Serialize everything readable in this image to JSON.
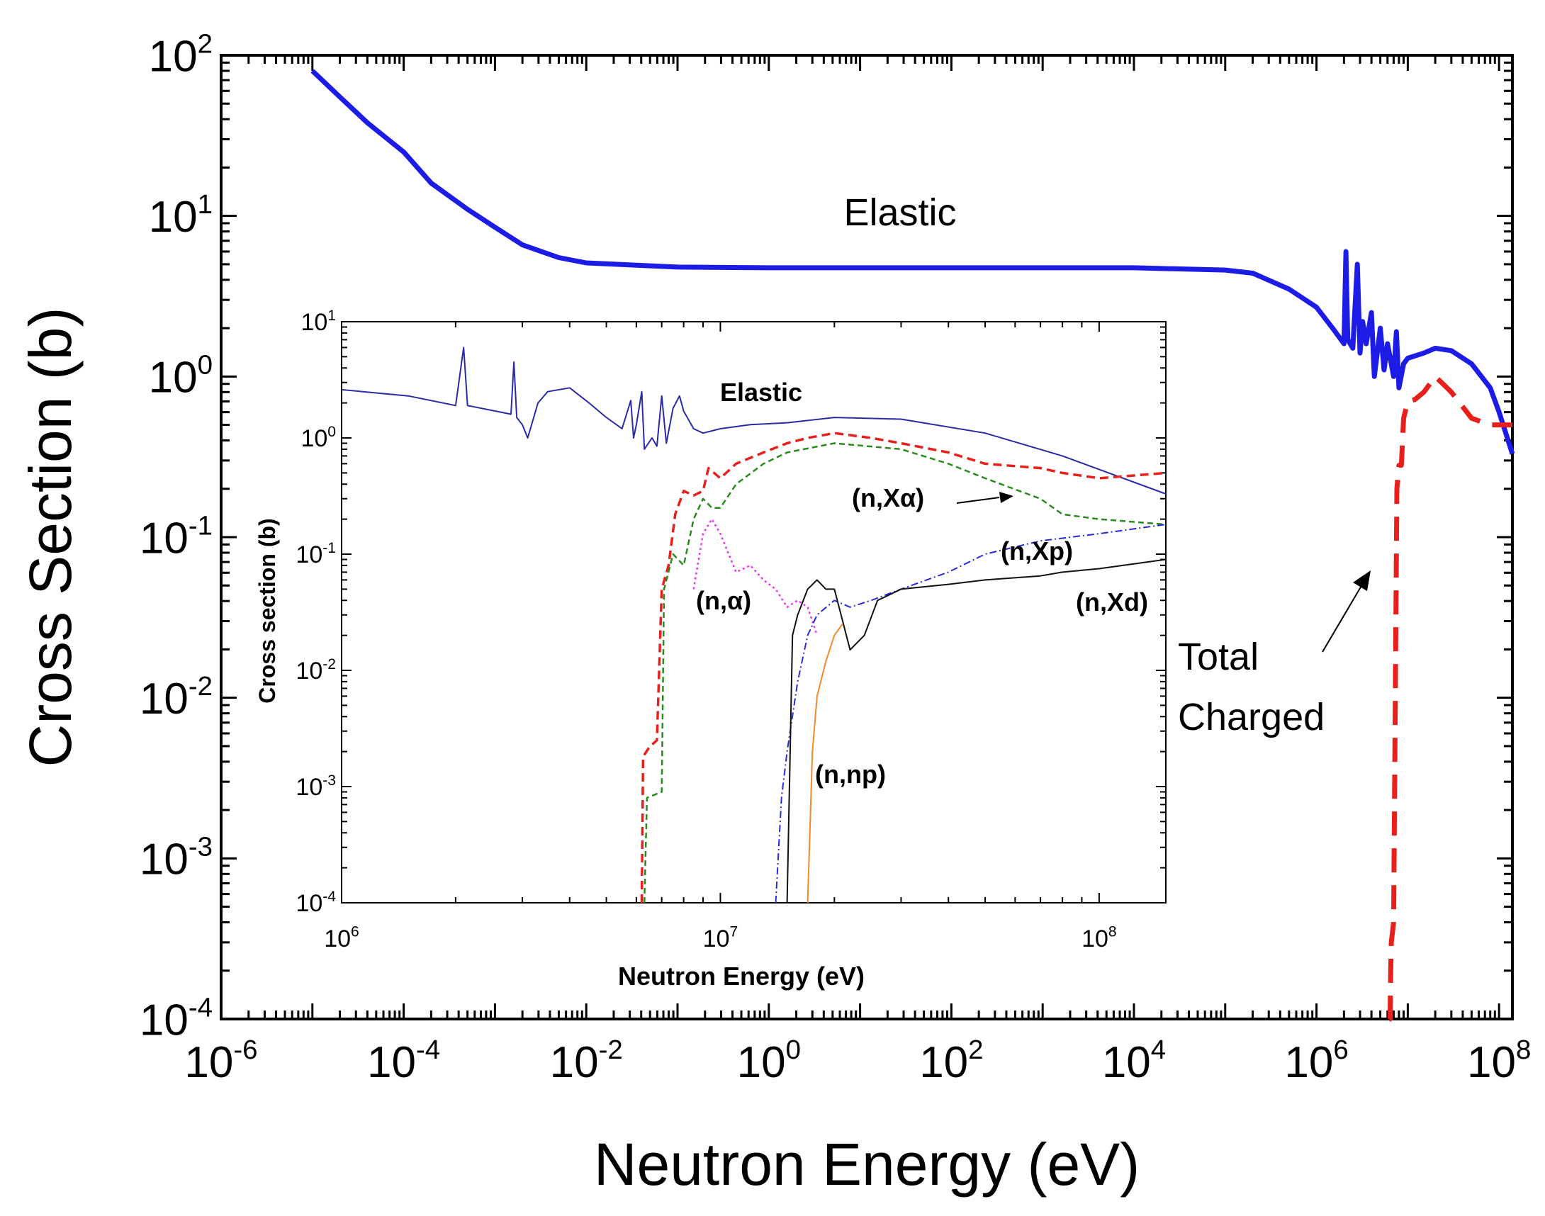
{
  "colors": {
    "elastic_main": "#1c1ce6",
    "total_charged": "#e8201c",
    "inset_elastic": "#2a2aa8",
    "inset_total": "#e8201c",
    "inset_nxalpha": "#2a8a1e",
    "inset_nalpha": "#e63be6",
    "inset_nxp": "#2a2ad8",
    "inset_nxd": "#111111",
    "inset_nnp": "#f08a2a",
    "axis": "#000000"
  },
  "chart_data": [
    {
      "type": "line",
      "scale": "log-log",
      "xlabel": "Neutron Energy (eV)",
      "ylabel": "Cross Section (b)",
      "xlim": [
        1e-06,
        140000000.0
      ],
      "ylim": [
        0.0001,
        100
      ],
      "x_ticks": [
        {
          "value": 1e-06,
          "base": "10",
          "exp": "-6"
        },
        {
          "value": 0.0001,
          "base": "10",
          "exp": "-4"
        },
        {
          "value": 0.01,
          "base": "10",
          "exp": "-2"
        },
        {
          "value": 1,
          "base": "10",
          "exp": "0"
        },
        {
          "value": 100,
          "base": "10",
          "exp": "2"
        },
        {
          "value": 10000.0,
          "base": "10",
          "exp": "4"
        },
        {
          "value": 1000000.0,
          "base": "10",
          "exp": "6"
        },
        {
          "value": 100000000.0,
          "base": "10",
          "exp": "8"
        }
      ],
      "y_ticks": [
        {
          "value": 0.0001,
          "base": "10",
          "exp": "-4"
        },
        {
          "value": 0.001,
          "base": "10",
          "exp": "-3"
        },
        {
          "value": 0.01,
          "base": "10",
          "exp": "-2"
        },
        {
          "value": 0.1,
          "base": "10",
          "exp": "-1"
        },
        {
          "value": 1,
          "base": "10",
          "exp": "0"
        },
        {
          "value": 10,
          "base": "10",
          "exp": "1"
        },
        {
          "value": 100,
          "base": "10",
          "exp": "2"
        }
      ],
      "series": [
        {
          "name": "Elastic",
          "style": "solid",
          "points": [
            [
              1e-05,
              80
            ],
            [
              2e-05,
              55
            ],
            [
              4e-05,
              38
            ],
            [
              0.0001,
              25
            ],
            [
              0.0002,
              16
            ],
            [
              0.0005,
              11
            ],
            [
              0.001,
              8.5
            ],
            [
              0.002,
              6.6
            ],
            [
              0.005,
              5.5
            ],
            [
              0.01,
              5.1
            ],
            [
              0.1,
              4.8
            ],
            [
              1,
              4.75
            ],
            [
              10,
              4.75
            ],
            [
              100,
              4.75
            ],
            [
              1000.0,
              4.75
            ],
            [
              10000.0,
              4.75
            ],
            [
              100000.0,
              4.6
            ],
            [
              200000.0,
              4.4
            ],
            [
              500000.0,
              3.5
            ],
            [
              1000000.0,
              2.7
            ],
            [
              1500000.0,
              2.0
            ],
            [
              2000000.0,
              1.6
            ],
            [
              2100000.0,
              6.0
            ],
            [
              2200000.0,
              1.7
            ],
            [
              2500000.0,
              1.5
            ],
            [
              2800000.0,
              5.0
            ],
            [
              3000000.0,
              1.4
            ],
            [
              3200000.0,
              2.2
            ],
            [
              3500000.0,
              1.6
            ],
            [
              4000000.0,
              2.5
            ],
            [
              4300000.0,
              1.0
            ],
            [
              5000000.0,
              2.0
            ],
            [
              5500000.0,
              1.1
            ],
            [
              6000000.0,
              1.6
            ],
            [
              7000000.0,
              1.0
            ],
            [
              7500000.0,
              1.9
            ],
            [
              8000000.0,
              0.85
            ],
            [
              9000000.0,
              1.2
            ],
            [
              10000000.0,
              1.3
            ],
            [
              15000000.0,
              1.4
            ],
            [
              20000000.0,
              1.5
            ],
            [
              30000000.0,
              1.45
            ],
            [
              50000000.0,
              1.2
            ],
            [
              80000000.0,
              0.85
            ],
            [
              100000000.0,
              0.6
            ],
            [
              140000000.0,
              0.33
            ]
          ]
        },
        {
          "name": "Total Charged",
          "style": "dashed",
          "points": [
            [
              6300000.0,
              0.0001
            ],
            [
              6400000.0,
              0.0001
            ],
            [
              6500000.0,
              0.0002
            ],
            [
              6600000.0,
              0.0003
            ],
            [
              7000000.0,
              0.0004
            ],
            [
              7600000.0,
              0.2
            ],
            [
              8000000.0,
              0.28
            ],
            [
              8500000.0,
              0.28
            ],
            [
              9000000.0,
              0.55
            ],
            [
              10000000.0,
              0.7
            ],
            [
              12000000.0,
              0.72
            ],
            [
              15000000.0,
              0.8
            ],
            [
              20000000.0,
              1.0
            ],
            [
              30000000.0,
              0.8
            ],
            [
              50000000.0,
              0.55
            ],
            [
              80000000.0,
              0.5
            ],
            [
              140000000.0,
              0.5
            ]
          ]
        }
      ],
      "annotations": [
        {
          "text": "Elastic",
          "x": 20,
          "y": 9
        },
        {
          "text_lines": [
            "Total",
            "Charged"
          ],
          "x": 180000.0,
          "y": 0.006,
          "arrow_to": [
            6700000.0,
            0.05
          ]
        }
      ]
    },
    {
      "type": "line",
      "scale": "log-log",
      "inset": true,
      "xlabel": "Neutron Energy (eV)",
      "ylabel": "Cross section (b)",
      "xlim": [
        1000000.0,
        150000000.0
      ],
      "ylim": [
        0.0001,
        10
      ],
      "x_ticks": [
        {
          "value": 1000000.0,
          "base": "10",
          "exp": "6"
        },
        {
          "value": 10000000.0,
          "base": "10",
          "exp": "7"
        },
        {
          "value": 100000000.0,
          "base": "10",
          "exp": "8"
        }
      ],
      "y_ticks": [
        {
          "value": 0.0001,
          "base": "10",
          "exp": "-4"
        },
        {
          "value": 0.001,
          "base": "10",
          "exp": "-3"
        },
        {
          "value": 0.01,
          "base": "10",
          "exp": "-2"
        },
        {
          "value": 0.1,
          "base": "10",
          "exp": "-1"
        },
        {
          "value": 1,
          "base": "10",
          "exp": "0"
        },
        {
          "value": 10,
          "base": "10",
          "exp": "1"
        }
      ],
      "series": [
        {
          "name": "Elastic",
          "style": "solid",
          "points": [
            [
              1000000.0,
              2.6
            ],
            [
              1500000.0,
              2.3
            ],
            [
              2000000.0,
              1.9
            ],
            [
              2100000.0,
              6.0
            ],
            [
              2150000.0,
              1.9
            ],
            [
              2800000.0,
              1.6
            ],
            [
              2850000.0,
              4.5
            ],
            [
              2900000.0,
              1.5
            ],
            [
              3000000.0,
              1.3
            ],
            [
              3100000.0,
              1.0
            ],
            [
              3300000.0,
              2.0
            ],
            [
              3500000.0,
              2.5
            ],
            [
              4000000.0,
              2.7
            ],
            [
              4500000.0,
              2.0
            ],
            [
              5000000.0,
              1.5
            ],
            [
              5500000.0,
              1.2
            ],
            [
              5800000.0,
              2.1
            ],
            [
              5900000.0,
              1.0
            ],
            [
              6000000.0,
              1.3
            ],
            [
              6200000.0,
              2.5
            ],
            [
              6300000.0,
              0.8
            ],
            [
              6600000.0,
              1.0
            ],
            [
              6800000.0,
              0.85
            ],
            [
              7000000.0,
              2.3
            ],
            [
              7200000.0,
              0.9
            ],
            [
              7500000.0,
              1.8
            ],
            [
              7800000.0,
              2.3
            ],
            [
              8000000.0,
              1.7
            ],
            [
              8500000.0,
              1.2
            ],
            [
              9000000.0,
              1.1
            ],
            [
              10000000.0,
              1.2
            ],
            [
              12000000.0,
              1.3
            ],
            [
              15000000.0,
              1.35
            ],
            [
              20000000.0,
              1.5
            ],
            [
              30000000.0,
              1.45
            ],
            [
              50000000.0,
              1.1
            ],
            [
              80000000.0,
              0.7
            ],
            [
              150000000.0,
              0.33
            ]
          ]
        },
        {
          "name": "Total",
          "style": "dashed",
          "points": [
            [
              6200000.0,
              0.0001
            ],
            [
              6250000.0,
              0.0018
            ],
            [
              6500000.0,
              0.0022
            ],
            [
              6800000.0,
              0.0025
            ],
            [
              7000000.0,
              0.05
            ],
            [
              7300000.0,
              0.08
            ],
            [
              7600000.0,
              0.22
            ],
            [
              8000000.0,
              0.35
            ],
            [
              8500000.0,
              0.32
            ],
            [
              9000000.0,
              0.35
            ],
            [
              9300000.0,
              0.55
            ],
            [
              10000000.0,
              0.45
            ],
            [
              11000000.0,
              0.6
            ],
            [
              13000000.0,
              0.75
            ],
            [
              15000000.0,
              0.9
            ],
            [
              17000000.0,
              1.0
            ],
            [
              20000000.0,
              1.1
            ],
            [
              25000000.0,
              1.0
            ],
            [
              30000000.0,
              0.9
            ],
            [
              40000000.0,
              0.75
            ],
            [
              50000000.0,
              0.6
            ],
            [
              70000000.0,
              0.55
            ],
            [
              80000000.0,
              0.5
            ],
            [
              100000000.0,
              0.45
            ],
            [
              150000000.0,
              0.5
            ]
          ]
        },
        {
          "name": "(n,Xα)",
          "style": "dashed",
          "points": [
            [
              6300000.0,
              0.0001
            ],
            [
              6400000.0,
              0.0008
            ],
            [
              7000000.0,
              0.0009
            ],
            [
              7100000.0,
              0.05
            ],
            [
              7500000.0,
              0.1
            ],
            [
              8000000.0,
              0.08
            ],
            [
              8500000.0,
              0.2
            ],
            [
              9000000.0,
              0.3
            ],
            [
              9500000.0,
              0.25
            ],
            [
              10000000.0,
              0.25
            ],
            [
              11000000.0,
              0.4
            ],
            [
              13000000.0,
              0.6
            ],
            [
              15000000.0,
              0.75
            ],
            [
              20000000.0,
              0.9
            ],
            [
              30000000.0,
              0.8
            ],
            [
              40000000.0,
              0.6
            ],
            [
              50000000.0,
              0.45
            ],
            [
              70000000.0,
              0.3
            ],
            [
              80000000.0,
              0.22
            ],
            [
              100000000.0,
              0.2
            ],
            [
              150000000.0,
              0.18
            ]
          ]
        },
        {
          "name": "(n,α)",
          "style": "dotted",
          "points": [
            [
              8500000.0,
              0.05
            ],
            [
              9000000.0,
              0.15
            ],
            [
              9500000.0,
              0.2
            ],
            [
              10000000.0,
              0.15
            ],
            [
              11000000.0,
              0.07
            ],
            [
              12000000.0,
              0.08
            ],
            [
              13000000.0,
              0.06
            ],
            [
              14000000.0,
              0.05
            ],
            [
              15000000.0,
              0.035
            ],
            [
              16000000.0,
              0.04
            ],
            [
              17000000.0,
              0.035
            ],
            [
              18000000.0,
              0.02
            ]
          ]
        },
        {
          "name": "(n,Xp)",
          "style": "dash-dot",
          "points": [
            [
              14000000.0,
              0.0001
            ],
            [
              14500000.0,
              0.0008
            ],
            [
              15000000.0,
              0.002
            ],
            [
              16000000.0,
              0.008
            ],
            [
              17000000.0,
              0.02
            ],
            [
              18000000.0,
              0.03
            ],
            [
              20000000.0,
              0.04
            ],
            [
              22000000.0,
              0.035
            ],
            [
              25000000.0,
              0.04
            ],
            [
              30000000.0,
              0.05
            ],
            [
              40000000.0,
              0.07
            ],
            [
              50000000.0,
              0.1
            ],
            [
              70000000.0,
              0.13
            ],
            [
              100000000.0,
              0.15
            ],
            [
              150000000.0,
              0.18
            ]
          ]
        },
        {
          "name": "(n,Xd)",
          "style": "solid",
          "points": [
            [
              15000000.0,
              0.0001
            ],
            [
              15500000.0,
              0.02
            ],
            [
              16000000.0,
              0.03
            ],
            [
              17000000.0,
              0.05
            ],
            [
              18000000.0,
              0.06
            ],
            [
              19000000.0,
              0.05
            ],
            [
              20000000.0,
              0.05
            ],
            [
              22000000.0,
              0.015
            ],
            [
              24000000.0,
              0.02
            ],
            [
              26000000.0,
              0.04
            ],
            [
              30000000.0,
              0.05
            ],
            [
              40000000.0,
              0.055
            ],
            [
              50000000.0,
              0.06
            ],
            [
              70000000.0,
              0.065
            ],
            [
              80000000.0,
              0.07
            ],
            [
              100000000.0,
              0.075
            ],
            [
              150000000.0,
              0.09
            ]
          ]
        },
        {
          "name": "(n,np)",
          "style": "solid",
          "points": [
            [
              17000000.0,
              0.0001
            ],
            [
              17500000.0,
              0.002
            ],
            [
              18000000.0,
              0.006
            ],
            [
              19000000.0,
              0.012
            ],
            [
              20000000.0,
              0.02
            ],
            [
              21000000.0,
              0.025
            ]
          ]
        }
      ],
      "annotations": [
        {
          "text": "Elastic",
          "x": 15000000.0,
          "y": 1.9
        },
        {
          "text": "(n,Xα)",
          "x": 39000000.0,
          "y": 0.25,
          "arrow_to": [
            68000000.0,
            0.27
          ]
        },
        {
          "text": "(n,Xp)",
          "x": 84000000.0,
          "y": 0.095
        },
        {
          "text": "(n,α)",
          "x": 10700000.0,
          "y": 0.03
        },
        {
          "text": "(n,Xd)",
          "x": 130000000.0,
          "y": 0.028
        },
        {
          "text": "(n,np)",
          "x": 22000000.0,
          "y": 0.0009
        }
      ]
    }
  ]
}
